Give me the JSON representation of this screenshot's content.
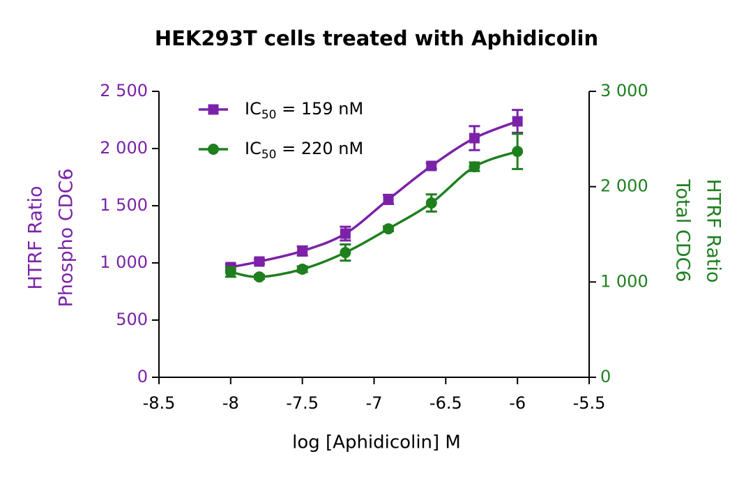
{
  "chart_data": {
    "type": "scatter",
    "title": "HEK293T cells treated with Aphidicolin",
    "x_label": "log [Aphidicolin] M",
    "y_label": [
      "HTRF Ratio",
      "Phospho CDC6"
    ],
    "y2_label": [
      "HTRF Ratio",
      "Total CDC6"
    ],
    "x": [
      -8.0,
      -7.8,
      -7.5,
      -7.2,
      -6.9,
      -6.6,
      -6.3,
      -6.0
    ],
    "series": [
      {
        "name": "IC50 = 159 nM",
        "color": "#7b22a8",
        "marker": "square",
        "values": [
          963,
          1012,
          1104,
          1256,
          1555,
          1848,
          2091,
          2238
        ],
        "errors": [
          25,
          20,
          40,
          60,
          40,
          25,
          105,
          100
        ]
      },
      {
        "name": "IC50 = 220 nM",
        "color": "#1f7f1f",
        "marker": "circle",
        "axis": "y2",
        "values": [
          1105,
          1053,
          1134,
          1309,
          1558,
          1829,
          2209,
          2370
        ],
        "errors": [
          50,
          20,
          30,
          85,
          25,
          90,
          45,
          185
        ]
      }
    ],
    "xlim": [
      -8.5,
      -5.5
    ],
    "xticks": [
      -8.5,
      -8.0,
      -7.5,
      -7.0,
      -6.5,
      -6.0,
      -5.5
    ],
    "ylim": [
      0,
      2500
    ],
    "yticks": [
      0,
      500,
      {
        "value": 1000,
        "label": "1 000"
      },
      {
        "value": 1500,
        "label": "1 500"
      },
      {
        "value": 2000,
        "label": "2 000"
      },
      {
        "value": 2500,
        "label": "2 500"
      }
    ],
    "y2lim": [
      0,
      3000
    ],
    "y2ticks": [
      0,
      {
        "value": 1000,
        "label": "1 000"
      },
      {
        "value": 2000,
        "label": "2 000"
      },
      {
        "value": 3000,
        "label": "3 000"
      }
    ],
    "legend": "upper left",
    "smooth": true
  }
}
